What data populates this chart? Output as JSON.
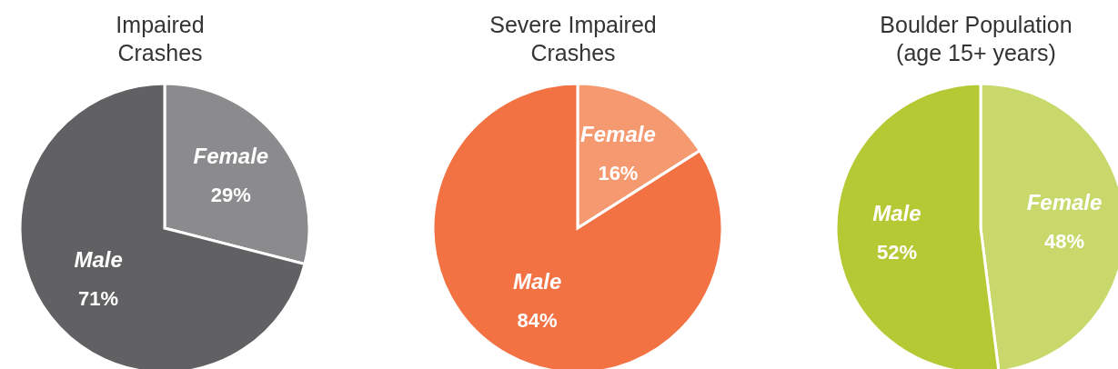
{
  "chart_data": [
    {
      "type": "pie",
      "title": "Impaired\nCrashes",
      "categories": [
        "Female",
        "Male"
      ],
      "values": [
        29,
        71
      ],
      "colors": [
        "#8b8b8d",
        "#616163"
      ],
      "value_labels": [
        "29%",
        "71%"
      ]
    },
    {
      "type": "pie",
      "title": "Severe Impaired\nCrashes",
      "categories": [
        "Female",
        "Male"
      ],
      "values": [
        16,
        84
      ],
      "colors": [
        "#f59a70",
        "#f27244"
      ],
      "value_labels": [
        "16%",
        "84%"
      ]
    },
    {
      "type": "pie",
      "title": "Boulder Population\n(age 15+ years)",
      "categories": [
        "Female",
        "Male"
      ],
      "values": [
        48,
        52
      ],
      "colors": [
        "#c8d86a",
        "#b5c934"
      ],
      "value_labels": [
        "48%",
        "52%"
      ]
    }
  ]
}
